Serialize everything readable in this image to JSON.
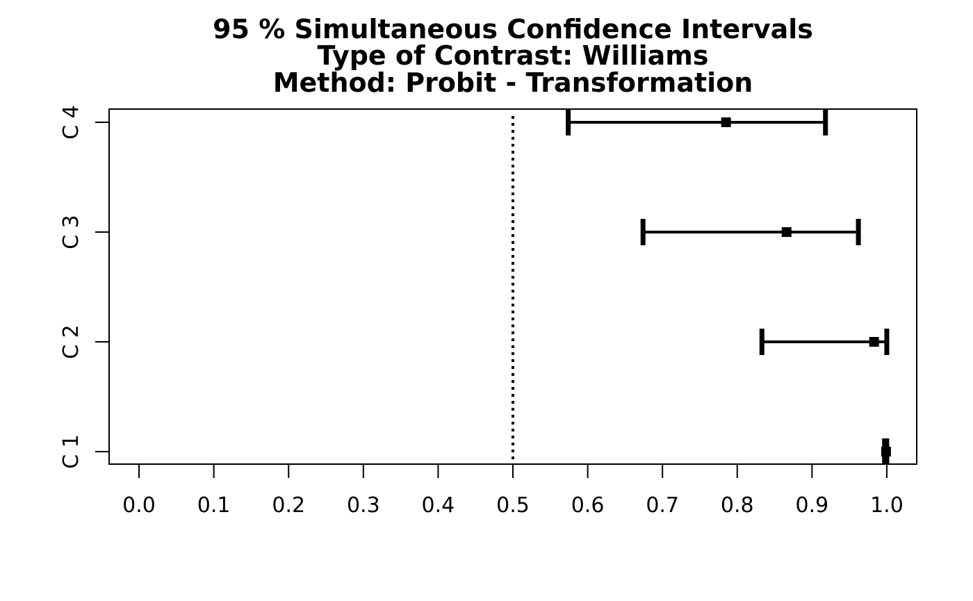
{
  "chart_data": {
    "type": "interval",
    "title_lines": [
      "95 % Simultaneous Confidence Intervals",
      "Type of Contrast: Williams",
      "Method: Probit - Transformation"
    ],
    "xlabel": "",
    "ylabel": "",
    "xlim": [
      -0.04,
      1.04
    ],
    "xticks": [
      0.0,
      0.1,
      0.2,
      0.3,
      0.4,
      0.5,
      0.6,
      0.7,
      0.8,
      0.9,
      1.0
    ],
    "xtick_labels": [
      "0.0",
      "0.1",
      "0.2",
      "0.3",
      "0.4",
      "0.5",
      "0.6",
      "0.7",
      "0.8",
      "0.9",
      "1.0"
    ],
    "reference_line": 0.5,
    "categories": [
      "C 1",
      "C 2",
      "C 3",
      "C 4"
    ],
    "estimates": [
      0.999,
      0.983,
      0.866,
      0.785
    ],
    "lower": [
      0.997,
      0.833,
      0.674,
      0.574
    ],
    "upper": [
      1.0,
      1.0,
      0.962,
      0.918
    ],
    "grid": false,
    "colors": {
      "foreground": "#000000",
      "background": "#ffffff"
    }
  }
}
